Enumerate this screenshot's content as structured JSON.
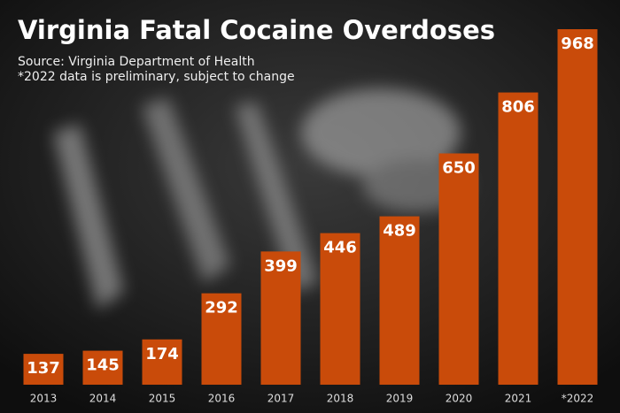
{
  "chart_data": {
    "type": "bar",
    "title": "Virginia Fatal Cocaine Overdoses",
    "subtitle": "Source: Virginia Department of Health",
    "note": "*2022 data is preliminary, subject to change",
    "categories": [
      "2013",
      "2014",
      "2015",
      "2016",
      "2017",
      "2018",
      "2019",
      "2020",
      "2021",
      "*2022"
    ],
    "values": [
      137,
      145,
      174,
      292,
      399,
      446,
      489,
      650,
      806,
      968
    ],
    "color": "#c94b0a",
    "ylim": [
      58,
      968
    ]
  }
}
